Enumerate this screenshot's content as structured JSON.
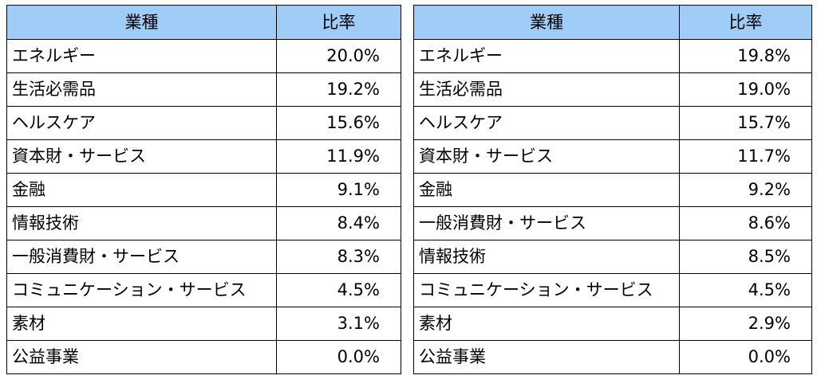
{
  "tables": [
    {
      "header": {
        "sector": "業種",
        "ratio": "比率"
      },
      "rows": [
        {
          "sector": "エネルギー",
          "ratio": "20.0%"
        },
        {
          "sector": "生活必需品",
          "ratio": "19.2%"
        },
        {
          "sector": "ヘルスケア",
          "ratio": "15.6%"
        },
        {
          "sector": "資本財・サービス",
          "ratio": "11.9%"
        },
        {
          "sector": "金融",
          "ratio": "9.1%"
        },
        {
          "sector": "情報技術",
          "ratio": "8.4%"
        },
        {
          "sector": "一般消費財・サービス",
          "ratio": "8.3%"
        },
        {
          "sector": "コミュニケーション・サービス",
          "ratio": "4.5%"
        },
        {
          "sector": "素材",
          "ratio": "3.1%"
        },
        {
          "sector": "公益事業",
          "ratio": "0.0%"
        }
      ]
    },
    {
      "header": {
        "sector": "業種",
        "ratio": "比率"
      },
      "rows": [
        {
          "sector": "エネルギー",
          "ratio": "19.8%"
        },
        {
          "sector": "生活必需品",
          "ratio": "19.0%"
        },
        {
          "sector": "ヘルスケア",
          "ratio": "15.7%"
        },
        {
          "sector": "資本財・サービス",
          "ratio": "11.7%"
        },
        {
          "sector": "金融",
          "ratio": "9.2%"
        },
        {
          "sector": "一般消費財・サービス",
          "ratio": "8.6%"
        },
        {
          "sector": "情報技術",
          "ratio": "8.5%"
        },
        {
          "sector": "コミュニケーション・サービス",
          "ratio": "4.5%"
        },
        {
          "sector": "素材",
          "ratio": "2.9%"
        },
        {
          "sector": "公益事業",
          "ratio": "0.0%"
        }
      ]
    }
  ],
  "colors": {
    "header_background": "#9fcdf8",
    "border": "#000000"
  }
}
